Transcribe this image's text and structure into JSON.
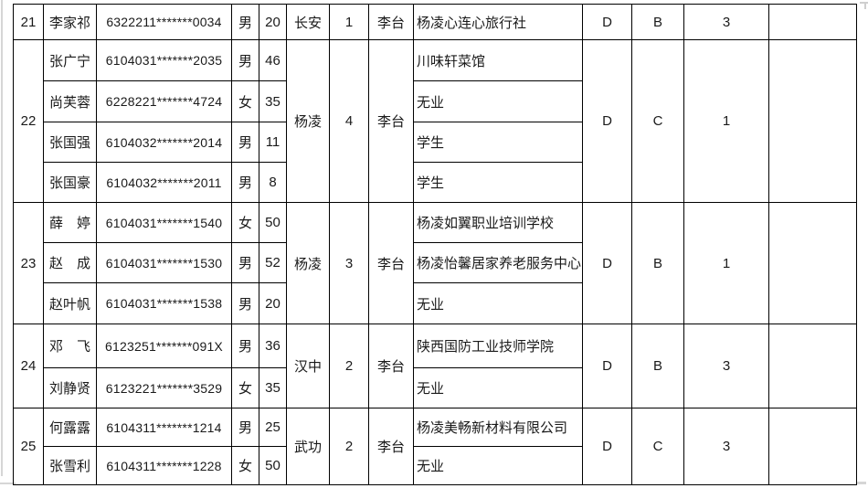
{
  "table": {
    "groups": [
      {
        "no": "21",
        "origin": "长安",
        "count": "1",
        "officer": "李台",
        "d": "D",
        "grade": "B",
        "num": "3",
        "extra": "",
        "members": [
          {
            "name": "李家祁",
            "id": "6322211*******0034",
            "gender": "男",
            "age": "20",
            "occupation": "杨凌心连心旅行社"
          }
        ]
      },
      {
        "no": "22",
        "origin": "杨凌",
        "count": "4",
        "officer": "李台",
        "d": "D",
        "grade": "C",
        "num": "1",
        "extra": "",
        "members": [
          {
            "name": "张广宁",
            "id": "6104031*******2035",
            "gender": "男",
            "age": "46",
            "occupation": "川味轩菜馆"
          },
          {
            "name": "尚芙蓉",
            "id": "6228221*******4724",
            "gender": "女",
            "age": "35",
            "occupation": "无业"
          },
          {
            "name": "张国强",
            "id": "6104032*******2014",
            "gender": "男",
            "age": "11",
            "occupation": "学生"
          },
          {
            "name": "张国豪",
            "id": "6104032*******2011",
            "gender": "男",
            "age": "8",
            "occupation": "学生"
          }
        ]
      },
      {
        "no": "23",
        "origin": "杨凌",
        "count": "3",
        "officer": "李台",
        "d": "D",
        "grade": "B",
        "num": "1",
        "extra": "",
        "members": [
          {
            "name": "薛　婷",
            "id": "6104031*******1540",
            "gender": "女",
            "age": "50",
            "occupation": "杨凌如翼职业培训学校"
          },
          {
            "name": "赵　成",
            "id": "6104031*******1530",
            "gender": "男",
            "age": "52",
            "occupation": "杨凌怡馨居家养老服务中心"
          },
          {
            "name": "赵叶帆",
            "id": "6104031*******1538",
            "gender": "男",
            "age": "20",
            "occupation": "无业"
          }
        ]
      },
      {
        "no": "24",
        "origin": "汉中",
        "count": "2",
        "officer": "李台",
        "d": "D",
        "grade": "B",
        "num": "3",
        "extra": "",
        "members": [
          {
            "name": "邓　飞",
            "id": "6123251*******091X",
            "gender": "男",
            "age": "36",
            "occupation": "陕西国防工业技师学院"
          },
          {
            "name": "刘静贤",
            "id": "6123221*******3529",
            "gender": "女",
            "age": "35",
            "occupation": "无业"
          }
        ]
      },
      {
        "no": "25",
        "origin": "武功",
        "count": "2",
        "officer": "李台",
        "d": "D",
        "grade": "C",
        "num": "3",
        "extra": "",
        "members": [
          {
            "name": "何露露",
            "id": "6104311*******1214",
            "gender": "男",
            "age": "25",
            "occupation": "杨凌美畅新材料有限公司"
          },
          {
            "name": "张雪利",
            "id": "6104311*******1228",
            "gender": "女",
            "age": "50",
            "occupation": "无业"
          }
        ]
      }
    ]
  }
}
